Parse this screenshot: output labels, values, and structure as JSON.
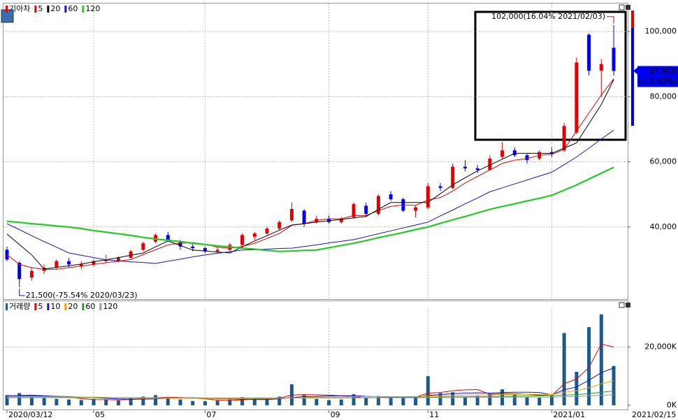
{
  "chart_data": [
    {
      "type": "candlestick",
      "title": "기아차",
      "open": [
        33000,
        29000,
        24500,
        26500,
        27500,
        29500,
        28000,
        28500,
        29500,
        29500,
        30500,
        33000,
        35500,
        37500,
        35500,
        34000,
        33500,
        32500,
        33000,
        34500,
        37000,
        38000,
        39500,
        42000,
        45000,
        41500,
        42500,
        41500,
        43000,
        46500,
        44000,
        50000,
        48500,
        45000,
        46000,
        52500,
        52000,
        58500,
        58000,
        57500,
        61500,
        63500,
        62000,
        61000,
        63000,
        63500,
        69000,
        99000,
        88000,
        95000
      ],
      "high": [
        34000,
        29500,
        27500,
        28500,
        30000,
        30500,
        29500,
        30000,
        31500,
        31000,
        33000,
        35500,
        38000,
        38500,
        36000,
        35000,
        34000,
        34000,
        35000,
        38000,
        38500,
        40000,
        42000,
        47500,
        45500,
        43500,
        43500,
        43000,
        47500,
        47500,
        50000,
        51000,
        49000,
        46500,
        53500,
        53500,
        59500,
        60500,
        59000,
        62000,
        66000,
        64500,
        62500,
        63500,
        64500,
        72000,
        92000,
        99500,
        91500,
        102000
      ],
      "low": [
        29500,
        21500,
        23500,
        25500,
        27000,
        27500,
        27000,
        28000,
        29000,
        29000,
        30500,
        32500,
        35000,
        35500,
        33000,
        32500,
        32000,
        32000,
        32500,
        34000,
        36000,
        37500,
        39000,
        41500,
        40000,
        41000,
        41000,
        41000,
        42500,
        43000,
        43500,
        48000,
        44500,
        43000,
        45500,
        51000,
        51500,
        57000,
        56500,
        57500,
        61000,
        61500,
        59500,
        60500,
        61500,
        63000,
        68500,
        86500,
        80000,
        86500
      ],
      "close": [
        30000,
        24000,
        26500,
        27500,
        29500,
        28500,
        28500,
        29500,
        30000,
        30500,
        32500,
        35000,
        37500,
        36000,
        34000,
        33500,
        32500,
        33000,
        34500,
        37500,
        38000,
        39500,
        41500,
        45500,
        41000,
        42500,
        41500,
        42500,
        47000,
        44000,
        49500,
        48500,
        45000,
        46000,
        52500,
        52000,
        58500,
        58000,
        57500,
        61000,
        63500,
        62000,
        60500,
        63000,
        62500,
        71000,
        90500,
        88000,
        90000,
        87900
      ],
      "up_color": "#e60000",
      "down_color": "#0000ee",
      "series": [
        {
          "name": "5",
          "color": "#e60000",
          "values": [
            31500,
            28500,
            27500,
            27000,
            27000,
            27500,
            28000,
            28500,
            29000,
            29500,
            30000,
            31500,
            33000,
            34500,
            35000,
            35200,
            34700,
            33800,
            33500,
            34000,
            35000,
            36500,
            38000,
            40500,
            41000,
            42000,
            42500,
            42500,
            43500,
            43500,
            45000,
            46300,
            46800,
            46600,
            48300,
            49000,
            51000,
            53500,
            55500,
            57500,
            59500,
            60500,
            61000,
            62000,
            62300,
            63800,
            69500,
            75000,
            80500,
            85500
          ]
        },
        {
          "name": "20",
          "color": "#000000",
          "values": [
            37800,
            34600,
            31400,
            27100,
            27600,
            28100,
            28600,
            29300,
            29900,
            30600,
            31300,
            32000,
            33900,
            35700,
            34300,
            32900,
            32600,
            32300,
            32000,
            33900,
            35700,
            37300,
            39000,
            40600,
            41000,
            41500,
            41900,
            42300,
            42800,
            43200,
            45400,
            47500,
            47500,
            47500,
            47500,
            50200,
            52900,
            55100,
            57200,
            59000,
            60800,
            62600,
            62600,
            62600,
            62600,
            64200,
            65800,
            71700,
            77600,
            85200
          ]
        },
        {
          "name": "60",
          "color": "#1414c8",
          "values": [
            41000,
            39200,
            37300,
            35500,
            33800,
            32000,
            31300,
            30600,
            29900,
            29600,
            29300,
            29100,
            28800,
            29500,
            30100,
            30800,
            31400,
            31900,
            32400,
            32900,
            33000,
            33200,
            33400,
            33500,
            34000,
            34500,
            35100,
            35600,
            36100,
            37000,
            37900,
            38800,
            39700,
            40600,
            41500,
            43400,
            45200,
            47100,
            48900,
            50800,
            52000,
            53200,
            54400,
            55600,
            56800,
            59100,
            61500,
            64200,
            67000,
            69700
          ]
        },
        {
          "name": "120",
          "color": "#22cc22",
          "values": [
            41700,
            41400,
            41000,
            40700,
            40300,
            40000,
            39500,
            38900,
            38400,
            37900,
            37400,
            36800,
            36300,
            35900,
            35500,
            35000,
            34600,
            34200,
            33900,
            33500,
            33200,
            32800,
            32500,
            32600,
            32800,
            32900,
            33600,
            34300,
            35000,
            35800,
            36700,
            37500,
            38300,
            39200,
            40000,
            41100,
            42200,
            43200,
            44300,
            45400,
            46300,
            47100,
            48000,
            48800,
            49700,
            51300,
            52900,
            54700,
            56500,
            58300
          ]
        }
      ],
      "ylim": [
        17850,
        108600
      ],
      "yticks": [
        {
          "value": 40000,
          "label": "40,000"
        },
        {
          "value": 60000,
          "label": "60,000"
        },
        {
          "value": 80000,
          "label": "80,000"
        },
        {
          "value": 100000,
          "label": "100,000"
        }
      ],
      "grid": true,
      "annotations": [
        {
          "value": 102000,
          "label": "102,000(16.04% 2021/02/03)"
        },
        {
          "value": 21500,
          "label": "21,500(-75.54% 2020/03/23)"
        }
      ],
      "last": {
        "value": 87900,
        "label": "87,900",
        "change": "(-13.40%)"
      }
    },
    {
      "type": "bar",
      "title": "거래량",
      "color": "#1c5a8c",
      "categories": [
        "2020/03/12",
        null,
        null,
        null,
        null,
        null,
        null,
        "05",
        null,
        null,
        null,
        null,
        null,
        null,
        null,
        null,
        "07",
        null,
        null,
        null,
        null,
        null,
        null,
        null,
        null,
        null,
        "09",
        null,
        null,
        null,
        null,
        null,
        null,
        null,
        "11",
        null,
        null,
        null,
        null,
        null,
        null,
        null,
        null,
        null,
        "2021/01",
        null,
        null,
        null,
        null,
        null
      ],
      "end_label": "2021/02/15",
      "values": [
        3500,
        4200,
        3000,
        2500,
        2200,
        2000,
        1800,
        2200,
        1900,
        1700,
        2400,
        3000,
        3500,
        2600,
        2000,
        1500,
        1400,
        1600,
        2000,
        2800,
        2500,
        2200,
        3000,
        7200,
        3500,
        2200,
        1800,
        2000,
        3800,
        2600,
        3200,
        2500,
        2800,
        2600,
        10000,
        4200,
        4500,
        3000,
        3200,
        4000,
        5500,
        3600,
        2800,
        2600,
        3200,
        24800,
        11500,
        26800,
        31200,
        13500
      ],
      "series": [
        {
          "name": "5",
          "color": "#e60000",
          "values": [
            3200,
            3400,
            3500,
            3300,
            3100,
            2800,
            2300,
            2000,
            1950,
            1900,
            2000,
            2300,
            2600,
            2800,
            2700,
            2500,
            2200,
            1800,
            1700,
            1900,
            2100,
            2200,
            2500,
            3500,
            3700,
            3600,
            3500,
            3300,
            3000,
            2500,
            2700,
            2800,
            3000,
            2800,
            4200,
            4400,
            5000,
            5300,
            5400,
            3800,
            4000,
            4000,
            3800,
            3500,
            3300,
            7400,
            9000,
            13000,
            21000,
            20000
          ]
        },
        {
          "name": "10",
          "color": "#1414c8",
          "values": [
            3300,
            3300,
            3300,
            3200,
            3100,
            3000,
            2800,
            2600,
            2400,
            2200,
            2100,
            2100,
            2200,
            2400,
            2500,
            2600,
            2500,
            2300,
            2200,
            2100,
            2000,
            2000,
            2200,
            2700,
            3000,
            3100,
            3200,
            3300,
            3300,
            3100,
            3000,
            2900,
            2900,
            2800,
            3400,
            3700,
            4000,
            4200,
            4300,
            4200,
            4400,
            4500,
            4500,
            4400,
            3600,
            5300,
            6300,
            8600,
            11200,
            12800
          ]
        },
        {
          "name": "20",
          "color": "#f0a000",
          "values": [
            3000,
            3000,
            3000,
            3000,
            2950,
            2900,
            2850,
            2800,
            2700,
            2600,
            2500,
            2400,
            2400,
            2400,
            2400,
            2400,
            2350,
            2300,
            2300,
            2300,
            2300,
            2300,
            2400,
            2600,
            2700,
            2800,
            2800,
            2900,
            3000,
            3000,
            3000,
            3000,
            3000,
            3000,
            3200,
            3300,
            3400,
            3500,
            3600,
            3600,
            3700,
            3800,
            3800,
            3800,
            3700,
            4500,
            5000,
            6000,
            7400,
            8400
          ]
        },
        {
          "name": "60",
          "color": "#20a020",
          "values": [
            2700,
            2700,
            2700,
            2700,
            2700,
            2700,
            2700,
            2650,
            2650,
            2600,
            2600,
            2600,
            2550,
            2550,
            2550,
            2500,
            2500,
            2500,
            2500,
            2500,
            2450,
            2450,
            2450,
            2500,
            2550,
            2550,
            2550,
            2550,
            2600,
            2600,
            2650,
            2650,
            2700,
            2700,
            2800,
            2850,
            2900,
            2950,
            3000,
            3050,
            3100,
            3150,
            3200,
            3250,
            3300,
            3500,
            3700,
            4000,
            4500,
            4900
          ]
        },
        {
          "name": "120",
          "color": "#999999",
          "values": [
            2600,
            2600,
            2600,
            2600,
            2600,
            2600,
            2600,
            2600,
            2600,
            2600,
            2600,
            2600,
            2600,
            2600,
            2600,
            2550,
            2550,
            2550,
            2550,
            2550,
            2550,
            2550,
            2550,
            2550,
            2550,
            2550,
            2550,
            2550,
            2550,
            2600,
            2600,
            2600,
            2600,
            2600,
            2650,
            2650,
            2700,
            2700,
            2700,
            2750,
            2750,
            2800,
            2800,
            2850,
            2850,
            2950,
            3050,
            3200,
            3450,
            3650
          ]
        }
      ],
      "ylim": [
        0,
        33300
      ],
      "yticks": [
        {
          "value": 0,
          "label": "0K"
        },
        {
          "value": 20000,
          "label": "20,000K"
        }
      ],
      "grid": true
    }
  ]
}
